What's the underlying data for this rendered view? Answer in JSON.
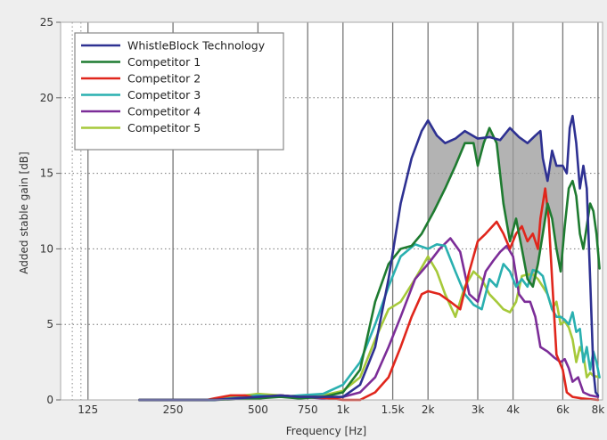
{
  "chart_data": {
    "type": "line",
    "title": "",
    "xlabel": "Frequency [Hz]",
    "ylabel": "Added stable gain [dB]",
    "x_scale": "log",
    "xlim": [
      100,
      8300
    ],
    "ylim": [
      0,
      25
    ],
    "x_ticks": [
      {
        "value": 125,
        "label": "125"
      },
      {
        "value": 250,
        "label": "250"
      },
      {
        "value": 500,
        "label": "500"
      },
      {
        "value": 750,
        "label": "750"
      },
      {
        "value": 1000,
        "label": "1k"
      },
      {
        "value": 1500,
        "label": "1.5k"
      },
      {
        "value": 2000,
        "label": "2k"
      },
      {
        "value": 3000,
        "label": "3k"
      },
      {
        "value": 4000,
        "label": "4k"
      },
      {
        "value": 6000,
        "label": "6k"
      },
      {
        "value": 8000,
        "label": "8k"
      }
    ],
    "y_ticks": [
      {
        "value": 0,
        "label": "0"
      },
      {
        "value": 5,
        "label": "5"
      },
      {
        "value": 10,
        "label": "10"
      },
      {
        "value": 15,
        "label": "15"
      },
      {
        "value": 20,
        "label": "20"
      },
      {
        "value": 25,
        "label": "25"
      }
    ],
    "grid": {
      "vertical": "solid",
      "horizontal": "dotted"
    },
    "legend_position": "top-left",
    "shaded_region": {
      "between": [
        "WhistleBlock Technology",
        "Competitor 1"
      ],
      "x_from": 2000,
      "x_to": 6000,
      "color": "#999999"
    },
    "series": [
      {
        "name": "WhistleBlock Technology",
        "color": "#2e3192",
        "points": [
          [
            190,
            0
          ],
          [
            350,
            0
          ],
          [
            500,
            0.2
          ],
          [
            600,
            0.3
          ],
          [
            700,
            0.2
          ],
          [
            800,
            0.2
          ],
          [
            1000,
            0.2
          ],
          [
            1150,
            1
          ],
          [
            1300,
            3.5
          ],
          [
            1450,
            8
          ],
          [
            1600,
            13
          ],
          [
            1750,
            16
          ],
          [
            1900,
            17.8
          ],
          [
            2000,
            18.5
          ],
          [
            2150,
            17.5
          ],
          [
            2300,
            17
          ],
          [
            2500,
            17.3
          ],
          [
            2700,
            17.8
          ],
          [
            3000,
            17.3
          ],
          [
            3300,
            17.4
          ],
          [
            3600,
            17.2
          ],
          [
            3900,
            18
          ],
          [
            4200,
            17.4
          ],
          [
            4500,
            17
          ],
          [
            4800,
            17.5
          ],
          [
            5000,
            17.8
          ],
          [
            5100,
            16
          ],
          [
            5300,
            14.5
          ],
          [
            5500,
            16.5
          ],
          [
            5700,
            15.5
          ],
          [
            6000,
            15.5
          ],
          [
            6200,
            15
          ],
          [
            6350,
            18
          ],
          [
            6500,
            18.8
          ],
          [
            6700,
            17
          ],
          [
            6900,
            14
          ],
          [
            7100,
            15.5
          ],
          [
            7300,
            14
          ],
          [
            7500,
            8
          ],
          [
            7700,
            2
          ],
          [
            7850,
            0.5
          ],
          [
            8000,
            0.3
          ]
        ]
      },
      {
        "name": "Competitor 1",
        "color": "#1e7b30",
        "points": [
          [
            190,
            0
          ],
          [
            350,
            0
          ],
          [
            500,
            0.1
          ],
          [
            600,
            0.2
          ],
          [
            700,
            0.1
          ],
          [
            850,
            0.2
          ],
          [
            1000,
            0.5
          ],
          [
            1150,
            2
          ],
          [
            1300,
            6.5
          ],
          [
            1450,
            9
          ],
          [
            1600,
            10
          ],
          [
            1750,
            10.2
          ],
          [
            1900,
            11
          ],
          [
            2100,
            12.5
          ],
          [
            2300,
            14
          ],
          [
            2500,
            15.5
          ],
          [
            2700,
            17
          ],
          [
            2900,
            17
          ],
          [
            3000,
            15.5
          ],
          [
            3150,
            17
          ],
          [
            3300,
            18
          ],
          [
            3500,
            17
          ],
          [
            3700,
            13
          ],
          [
            3900,
            10.5
          ],
          [
            4100,
            12
          ],
          [
            4300,
            10
          ],
          [
            4500,
            8
          ],
          [
            4700,
            7.5
          ],
          [
            4900,
            9
          ],
          [
            5100,
            11
          ],
          [
            5300,
            13
          ],
          [
            5500,
            12
          ],
          [
            5700,
            10
          ],
          [
            5900,
            8.5
          ],
          [
            6100,
            11.5
          ],
          [
            6300,
            14
          ],
          [
            6500,
            14.5
          ],
          [
            6700,
            13.5
          ],
          [
            6900,
            11
          ],
          [
            7100,
            10
          ],
          [
            7300,
            11.5
          ],
          [
            7500,
            13
          ],
          [
            7700,
            12.5
          ],
          [
            7900,
            11
          ],
          [
            8100,
            8.7
          ]
        ]
      },
      {
        "name": "Competitor 2",
        "color": "#e0261c",
        "points": [
          [
            190,
            0
          ],
          [
            330,
            0
          ],
          [
            350,
            0.1
          ],
          [
            400,
            0.3
          ],
          [
            450,
            0.3
          ],
          [
            500,
            0.1
          ],
          [
            600,
            0.3
          ],
          [
            700,
            0.2
          ],
          [
            800,
            0.2
          ],
          [
            1000,
            0
          ],
          [
            1150,
            0
          ],
          [
            1300,
            0.5
          ],
          [
            1450,
            1.5
          ],
          [
            1600,
            3.5
          ],
          [
            1750,
            5.5
          ],
          [
            1900,
            7
          ],
          [
            2000,
            7.2
          ],
          [
            2200,
            7
          ],
          [
            2400,
            6.5
          ],
          [
            2600,
            6
          ],
          [
            2800,
            8.5
          ],
          [
            3000,
            10.5
          ],
          [
            3200,
            11
          ],
          [
            3500,
            11.8
          ],
          [
            3700,
            11
          ],
          [
            3900,
            10
          ],
          [
            4100,
            11
          ],
          [
            4300,
            11.5
          ],
          [
            4500,
            10.5
          ],
          [
            4700,
            11
          ],
          [
            4900,
            10
          ],
          [
            5000,
            12
          ],
          [
            5200,
            14
          ],
          [
            5350,
            12
          ],
          [
            5500,
            8
          ],
          [
            5700,
            3
          ],
          [
            6000,
            2
          ],
          [
            6200,
            0.5
          ],
          [
            6500,
            0.2
          ],
          [
            7000,
            0.1
          ],
          [
            8000,
            0
          ]
        ]
      },
      {
        "name": "Competitor 3",
        "color": "#2ab0b0",
        "points": [
          [
            190,
            0
          ],
          [
            350,
            0
          ],
          [
            450,
            0.2
          ],
          [
            500,
            0.3
          ],
          [
            600,
            0.2
          ],
          [
            700,
            0.3
          ],
          [
            850,
            0.4
          ],
          [
            1000,
            1
          ],
          [
            1150,
            2.5
          ],
          [
            1300,
            5
          ],
          [
            1450,
            7.5
          ],
          [
            1600,
            9.5
          ],
          [
            1800,
            10.3
          ],
          [
            2000,
            10
          ],
          [
            2150,
            10.3
          ],
          [
            2300,
            10.2
          ],
          [
            2500,
            8.5
          ],
          [
            2700,
            7
          ],
          [
            2900,
            6.3
          ],
          [
            3100,
            6
          ],
          [
            3300,
            8
          ],
          [
            3500,
            7.5
          ],
          [
            3700,
            9
          ],
          [
            3900,
            8.5
          ],
          [
            4100,
            7.5
          ],
          [
            4300,
            8
          ],
          [
            4500,
            7.5
          ],
          [
            4700,
            8.6
          ],
          [
            4900,
            8.5
          ],
          [
            5100,
            8.2
          ],
          [
            5300,
            7
          ],
          [
            5500,
            6
          ],
          [
            5700,
            5.5
          ],
          [
            5900,
            5.5
          ],
          [
            6100,
            5.3
          ],
          [
            6300,
            5
          ],
          [
            6500,
            5.8
          ],
          [
            6700,
            4.5
          ],
          [
            6900,
            4.7
          ],
          [
            7100,
            2.5
          ],
          [
            7300,
            3.5
          ],
          [
            7500,
            2
          ],
          [
            7700,
            3.2
          ],
          [
            7900,
            2.5
          ],
          [
            8100,
            1.5
          ]
        ]
      },
      {
        "name": "Competitor 4",
        "color": "#7c2d98",
        "points": [
          [
            190,
            0
          ],
          [
            350,
            0
          ],
          [
            500,
            0.1
          ],
          [
            600,
            0.3
          ],
          [
            700,
            0.2
          ],
          [
            850,
            0.1
          ],
          [
            1000,
            0.2
          ],
          [
            1150,
            0.5
          ],
          [
            1300,
            1.5
          ],
          [
            1450,
            3.5
          ],
          [
            1600,
            5.5
          ],
          [
            1800,
            8
          ],
          [
            2000,
            9
          ],
          [
            2200,
            10
          ],
          [
            2400,
            10.7
          ],
          [
            2600,
            9.8
          ],
          [
            2800,
            7
          ],
          [
            3000,
            6.5
          ],
          [
            3200,
            8.5
          ],
          [
            3400,
            9.2
          ],
          [
            3600,
            9.8
          ],
          [
            3800,
            10.2
          ],
          [
            4000,
            9.5
          ],
          [
            4200,
            7
          ],
          [
            4400,
            6.5
          ],
          [
            4600,
            6.5
          ],
          [
            4800,
            5.5
          ],
          [
            5000,
            3.5
          ],
          [
            5300,
            3.2
          ],
          [
            5600,
            2.8
          ],
          [
            5900,
            2.5
          ],
          [
            6100,
            2.7
          ],
          [
            6300,
            2.1
          ],
          [
            6500,
            1.2
          ],
          [
            6800,
            1.5
          ],
          [
            7100,
            0.5
          ],
          [
            7500,
            0.3
          ],
          [
            8000,
            0.2
          ]
        ]
      },
      {
        "name": "Competitor 5",
        "color": "#a6c93a",
        "points": [
          [
            190,
            0
          ],
          [
            350,
            0
          ],
          [
            450,
            0.3
          ],
          [
            500,
            0.4
          ],
          [
            600,
            0.3
          ],
          [
            700,
            0.2
          ],
          [
            850,
            0.3
          ],
          [
            1000,
            0.6
          ],
          [
            1150,
            1.5
          ],
          [
            1300,
            4
          ],
          [
            1450,
            6
          ],
          [
            1600,
            6.5
          ],
          [
            1800,
            8
          ],
          [
            2000,
            9.5
          ],
          [
            2150,
            8.5
          ],
          [
            2300,
            7
          ],
          [
            2500,
            5.5
          ],
          [
            2700,
            7.5
          ],
          [
            2900,
            8.5
          ],
          [
            3100,
            8
          ],
          [
            3300,
            7
          ],
          [
            3500,
            6.5
          ],
          [
            3700,
            6
          ],
          [
            3900,
            5.8
          ],
          [
            4100,
            6.5
          ],
          [
            4300,
            8.2
          ],
          [
            4500,
            8.3
          ],
          [
            4700,
            8.3
          ],
          [
            4900,
            8
          ],
          [
            5100,
            7.5
          ],
          [
            5300,
            7
          ],
          [
            5500,
            6
          ],
          [
            5700,
            6.5
          ],
          [
            5900,
            5
          ],
          [
            6100,
            5.2
          ],
          [
            6300,
            4.8
          ],
          [
            6500,
            4
          ],
          [
            6700,
            2.5
          ],
          [
            6900,
            3.5
          ],
          [
            7100,
            3
          ],
          [
            7300,
            1.5
          ],
          [
            7500,
            1.8
          ],
          [
            7700,
            1.6
          ],
          [
            8100,
            1.5
          ]
        ]
      }
    ]
  }
}
